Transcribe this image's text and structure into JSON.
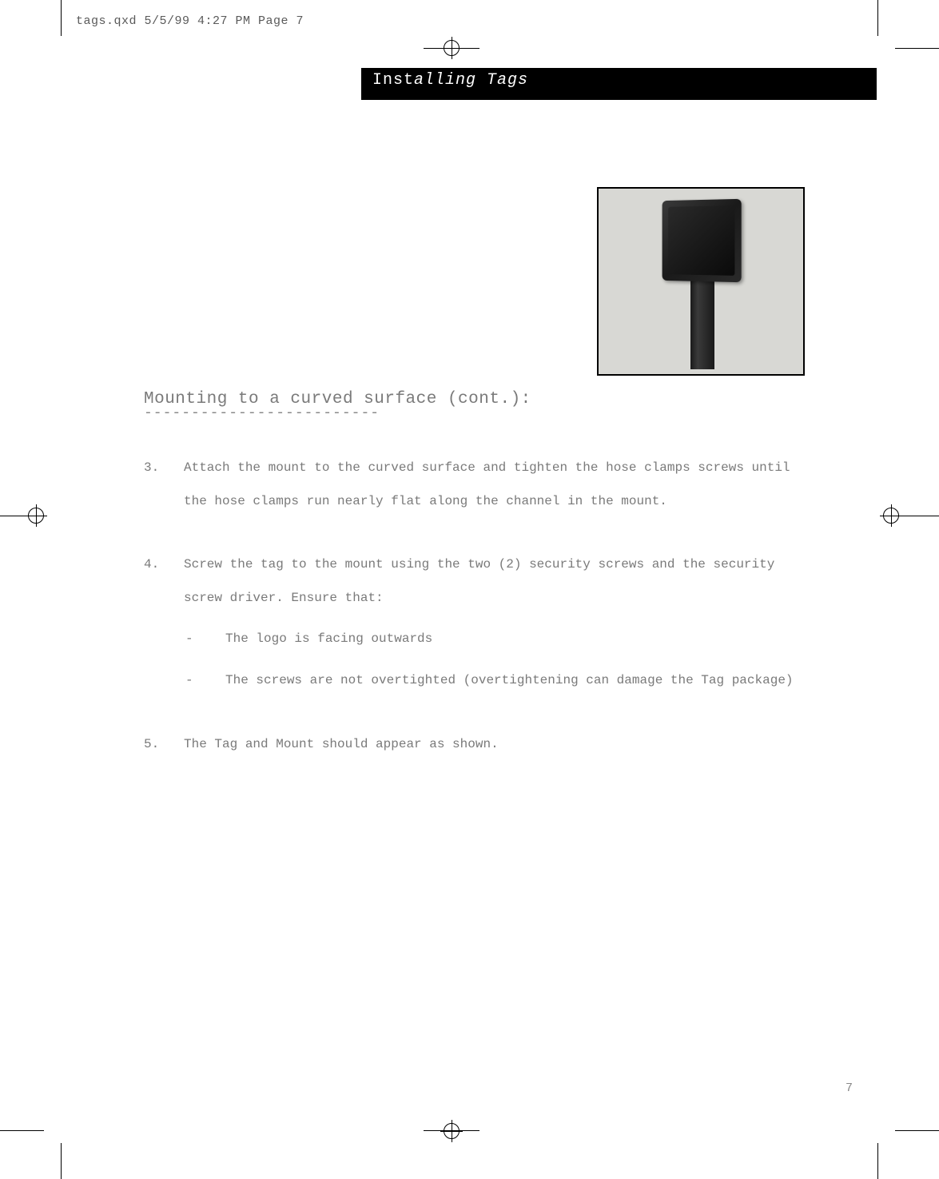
{
  "slug": "tags.qxd  5/5/99  4:27 PM  Page 7",
  "section_title_left": "Inst",
  "section_title_right": "alling Tags",
  "subheading": "Mounting to a curved surface (cont.):",
  "dashes": "-------------------------",
  "items": [
    {
      "num": "3.",
      "text": "Attach the mount to the curved surface and tighten the hose clamps screws until the hose clamps run nearly flat along the channel in the mount."
    },
    {
      "num": "4.",
      "text": "Screw the tag to the mount using the two (2) security screws and the security screw driver. Ensure that:",
      "subitems": [
        "The logo is facing outwards",
        "The screws are not overtighted (overtightening can damage the Tag package)"
      ]
    },
    {
      "num": "5.",
      "text": "The Tag and Mount should appear as shown."
    }
  ],
  "page_number": "7",
  "colors": {
    "text": "#7a7a7a",
    "header_bg": "#000000",
    "header_text": "#ffffff",
    "figure_bg": "#d8d8d4",
    "page_bg": "#ffffff"
  }
}
